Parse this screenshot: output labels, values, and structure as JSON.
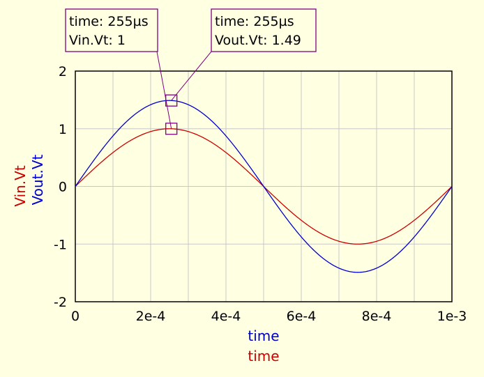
{
  "chart_data": {
    "type": "line",
    "x_range": [
      0,
      0.001
    ],
    "y_range": [
      -2,
      2
    ],
    "x_ticks": [
      "0",
      "2e-4",
      "4e-4",
      "6e-4",
      "8e-4",
      "1e-3"
    ],
    "x_tick_values": [
      0,
      0.0002,
      0.0004,
      0.0006,
      0.0008,
      0.001
    ],
    "y_ticks": [
      "2",
      "1",
      "0",
      "-1",
      "-2"
    ],
    "y_tick_values": [
      2,
      1,
      0,
      -1,
      -2
    ],
    "xlabels": [
      {
        "text": "time",
        "color": "#0000cc"
      },
      {
        "text": "time",
        "color": "#cc0000"
      }
    ],
    "ylabels": [
      {
        "text": "Vin.Vt",
        "color": "#cc0000"
      },
      {
        "text": "Vout.Vt",
        "color": "#0000cc"
      }
    ],
    "grid": true,
    "series": [
      {
        "name": "Vin.Vt",
        "color": "#cc0000",
        "function": "sine",
        "amplitude": 1,
        "period": 0.001
      },
      {
        "name": "Vout.Vt",
        "color": "#0000cc",
        "function": "sine",
        "amplitude": 1.49,
        "period": 0.001
      }
    ],
    "markers": [
      {
        "series": "Vin.Vt",
        "x": 0.000255,
        "y": 1,
        "line1": "time: 255µs",
        "line2": "Vin.Vt: 1"
      },
      {
        "series": "Vout.Vt",
        "x": 0.000255,
        "y": 1.49,
        "line1": "time: 255µs",
        "line2": "Vout.Vt: 1.49"
      }
    ]
  }
}
